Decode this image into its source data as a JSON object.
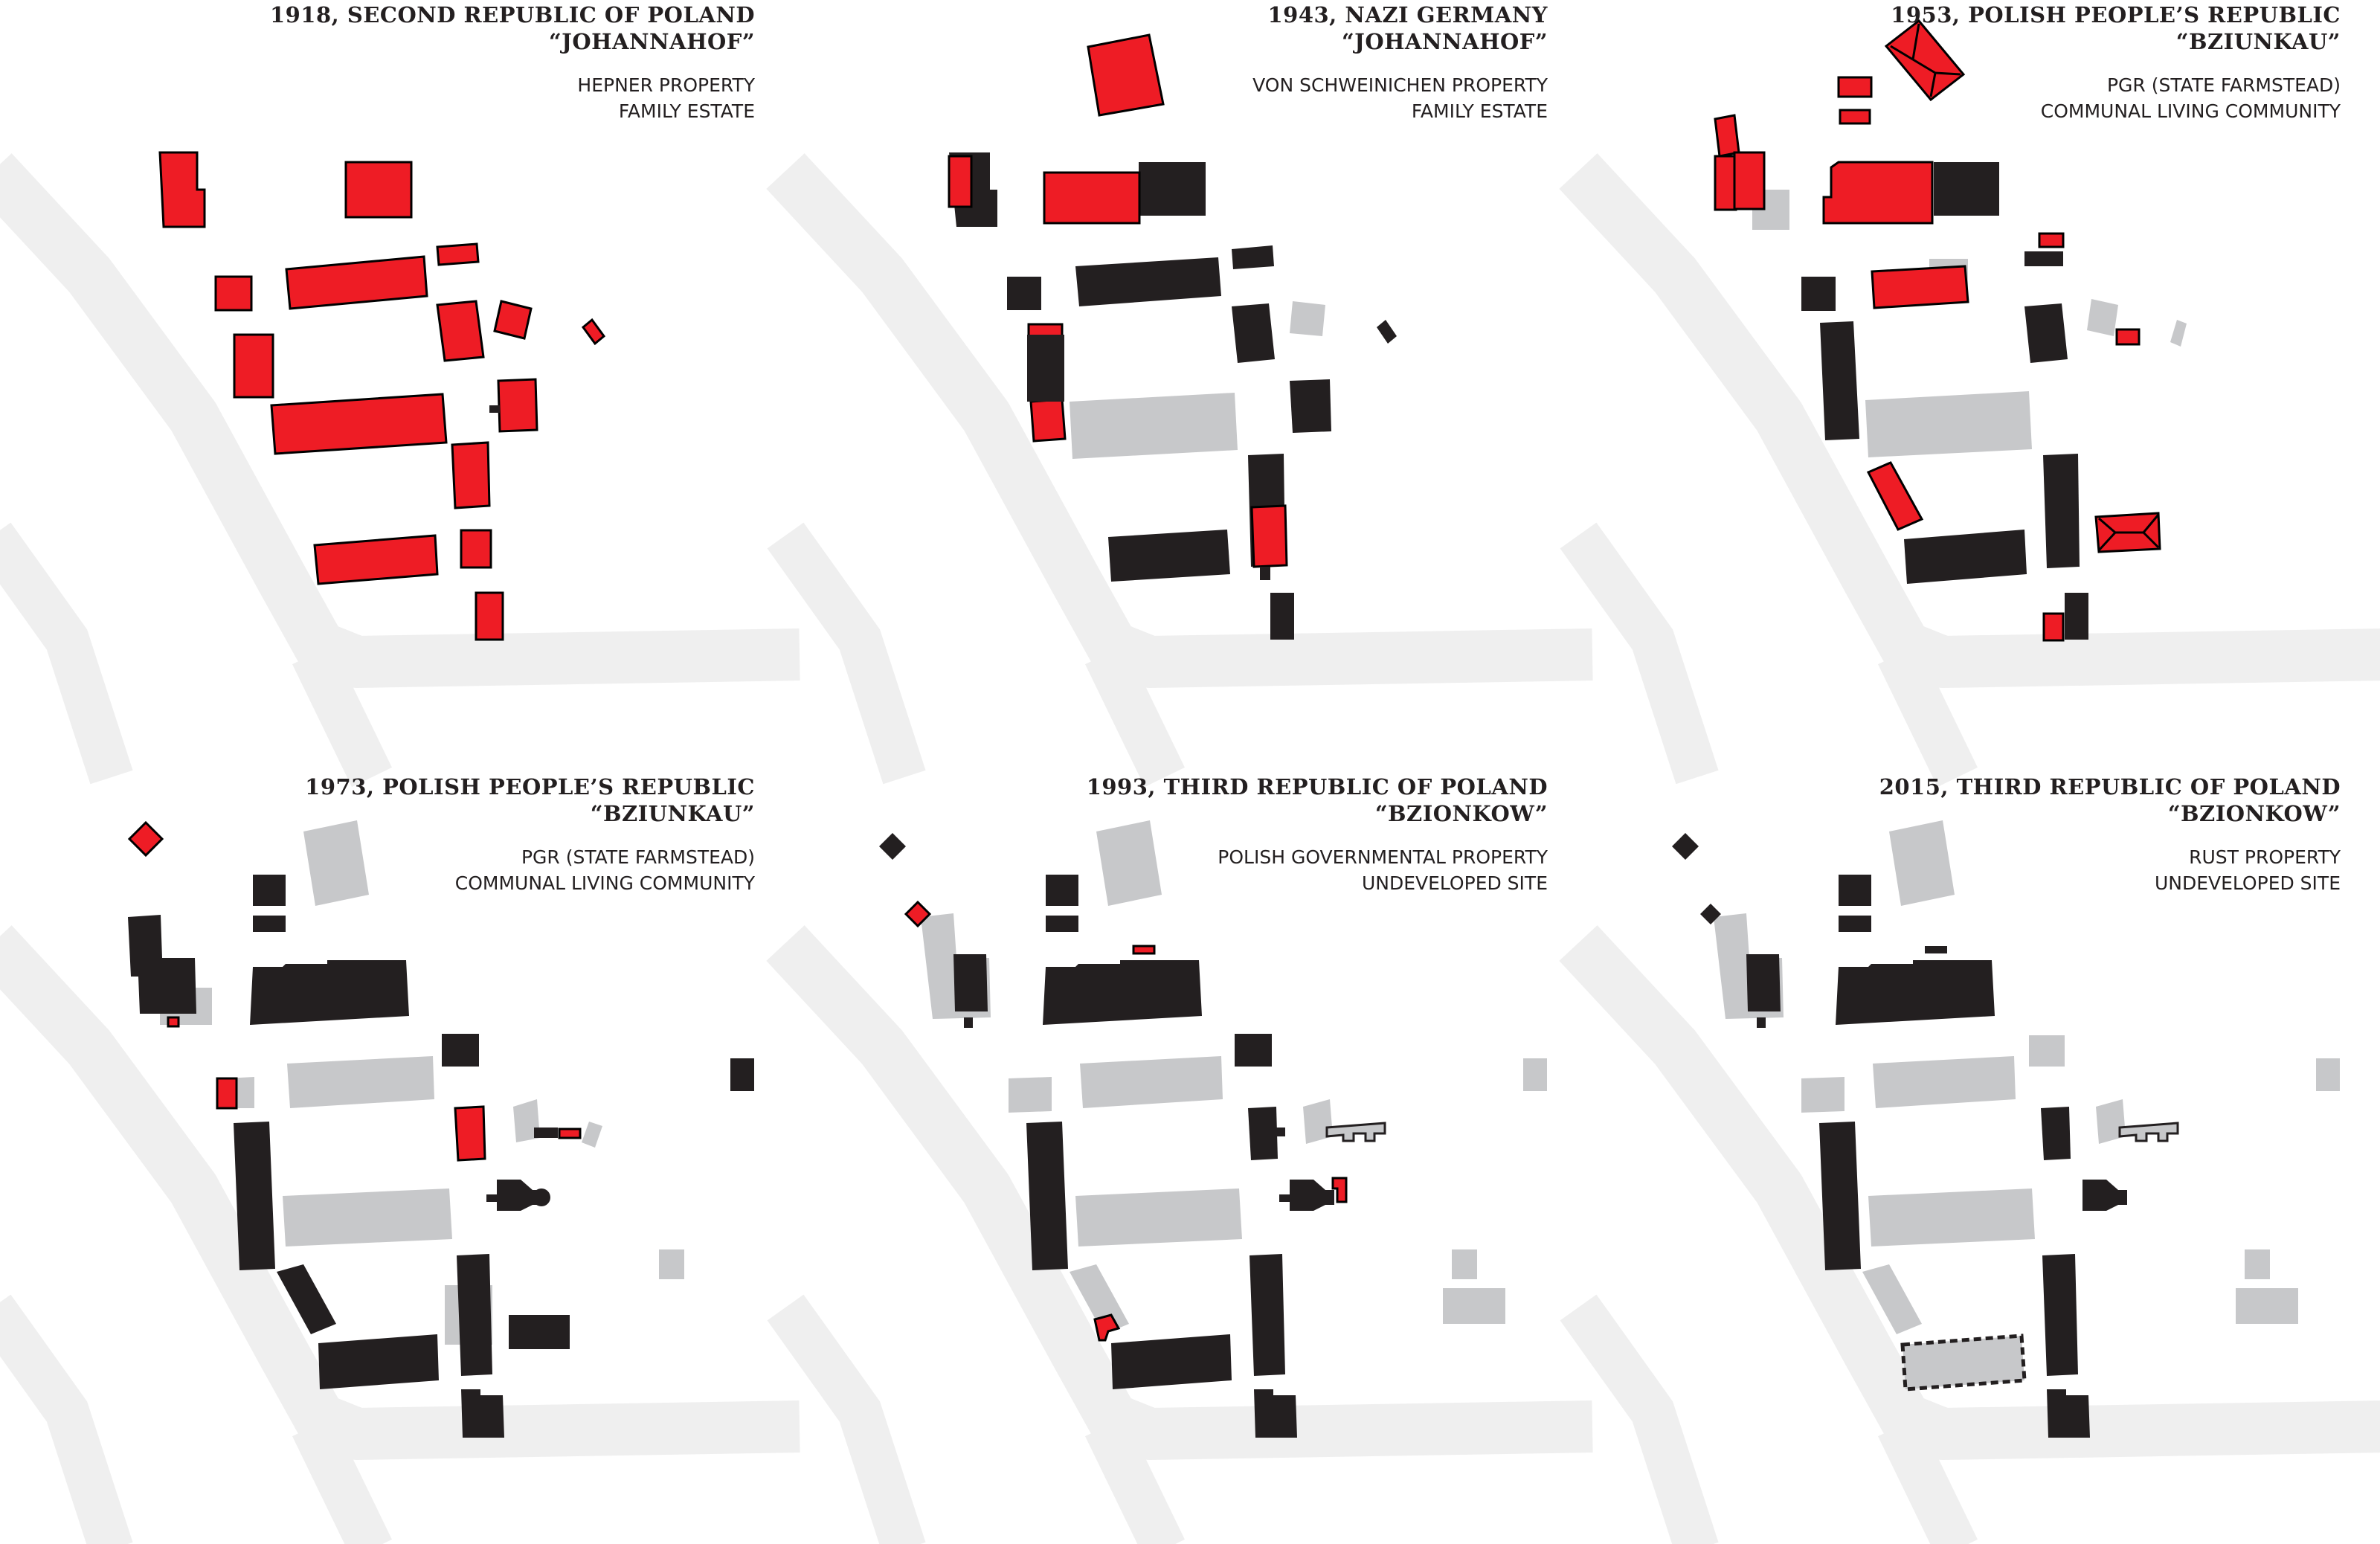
{
  "colors": {
    "historic": "#ee1c25",
    "standing": "#231f20",
    "demolished": "#c7c8ca",
    "road": "#efefef",
    "outline": "#000000"
  },
  "panels": [
    {
      "title_line1": "1918, SECOND REPUBLIC OF POLAND",
      "title_line2": "“JOHANNAHOF”",
      "owner": "HEPNER PROPERTY",
      "use": "FAMILY ESTATE"
    },
    {
      "title_line1": "1943, NAZI GERMANY",
      "title_line2": "“JOHANNAHOF”",
      "owner": "VON SCHWEINICHEN PROPERTY",
      "use": "FAMILY ESTATE"
    },
    {
      "title_line1": "1953, POLISH PEOPLE’S REPUBLIC",
      "title_line2": "“BZIUNKAU”",
      "owner": "PGR (STATE FARMSTEAD)",
      "use": "COMMUNAL LIVING COMMUNITY"
    },
    {
      "title_line1": "1973,  POLISH PEOPLE’S REPUBLIC",
      "title_line2": "“BZIUNKAU”",
      "owner": "PGR (STATE FARMSTEAD)",
      "use": "COMMUNAL LIVING COMMUNITY"
    },
    {
      "title_line1": "1993, THIRD REPUBLIC OF POLAND",
      "title_line2": "“BZIONKOW”",
      "owner": "POLISH GOVERNMENTAL PROPERTY",
      "use": "UNDEVELOPED SITE"
    },
    {
      "title_line1": "2015, THIRD REPUBLIC OF POLAND",
      "title_line2": "“BZIONKOW”",
      "owner": "RUST PROPERTY",
      "use": "UNDEVELOPED SITE"
    }
  ]
}
